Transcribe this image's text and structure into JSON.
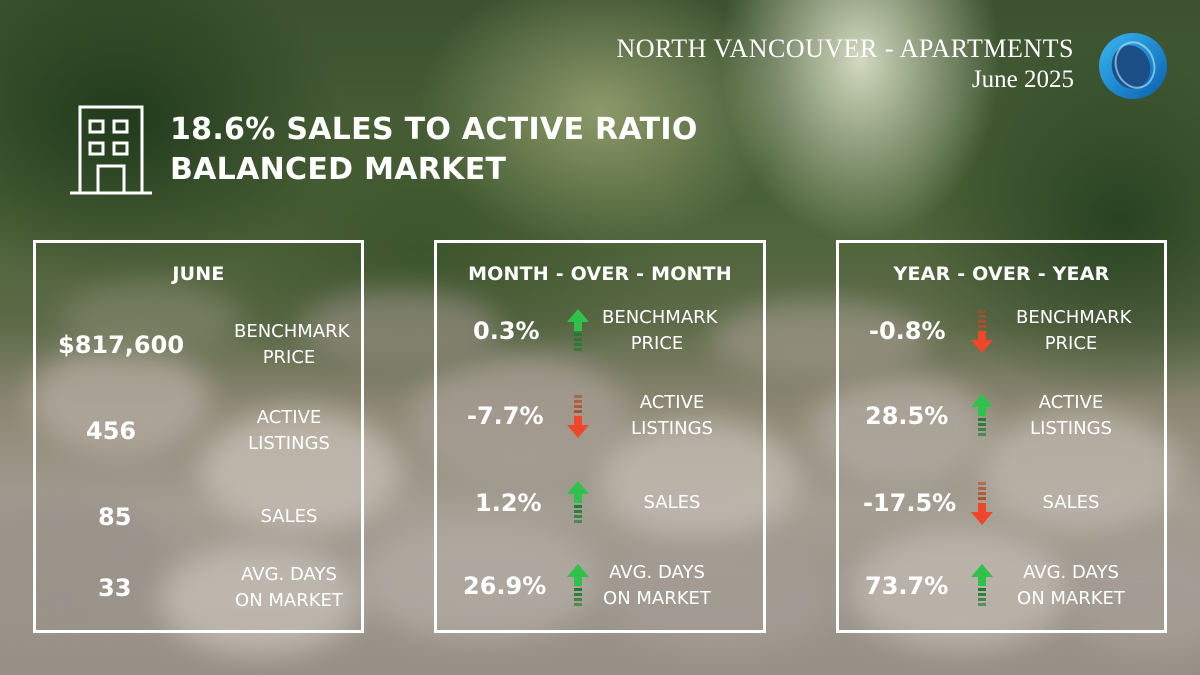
{
  "header": {
    "title": "NORTH VANCOUVER - APARTMENTS",
    "date": "June 2025"
  },
  "headline": {
    "line1": "18.6% SALES TO ACTIVE RATIO",
    "line2": "BALANCED MARKET"
  },
  "colors": {
    "up": "#2ec24a",
    "down": "#f0472b",
    "up_stripe": "#1e7a34",
    "down_stripe": "#b04e2a"
  },
  "june": {
    "title": "JUNE",
    "rows": [
      {
        "value": "$817,600",
        "label1": "BENCHMARK",
        "label2": "PRICE"
      },
      {
        "value": "456",
        "label1": "ACTIVE",
        "label2": "LISTINGS"
      },
      {
        "value": "85",
        "label1": "SALES",
        "label2": ""
      },
      {
        "value": "33",
        "label1": "AVG. DAYS",
        "label2": "ON MARKET"
      }
    ]
  },
  "mom": {
    "title": "MONTH - OVER - MONTH",
    "rows": [
      {
        "value": "0.3%",
        "direction": "up",
        "label1": "BENCHMARK",
        "label2": "PRICE"
      },
      {
        "value": "-7.7%",
        "direction": "down",
        "label1": "ACTIVE",
        "label2": "LISTINGS"
      },
      {
        "value": "1.2%",
        "direction": "up",
        "label1": "SALES",
        "label2": ""
      },
      {
        "value": "26.9%",
        "direction": "up",
        "label1": "AVG. DAYS",
        "label2": "ON MARKET"
      }
    ]
  },
  "yoy": {
    "title": "YEAR - OVER - YEAR",
    "rows": [
      {
        "value": "-0.8%",
        "direction": "down",
        "label1": "BENCHMARK",
        "label2": "PRICE"
      },
      {
        "value": "28.5%",
        "direction": "up",
        "label1": "ACTIVE",
        "label2": "LISTINGS"
      },
      {
        "value": "-17.5%",
        "direction": "down",
        "label1": "SALES",
        "label2": ""
      },
      {
        "value": "73.7%",
        "direction": "up",
        "label1": "AVG. DAYS",
        "label2": "ON MARKET"
      }
    ]
  }
}
